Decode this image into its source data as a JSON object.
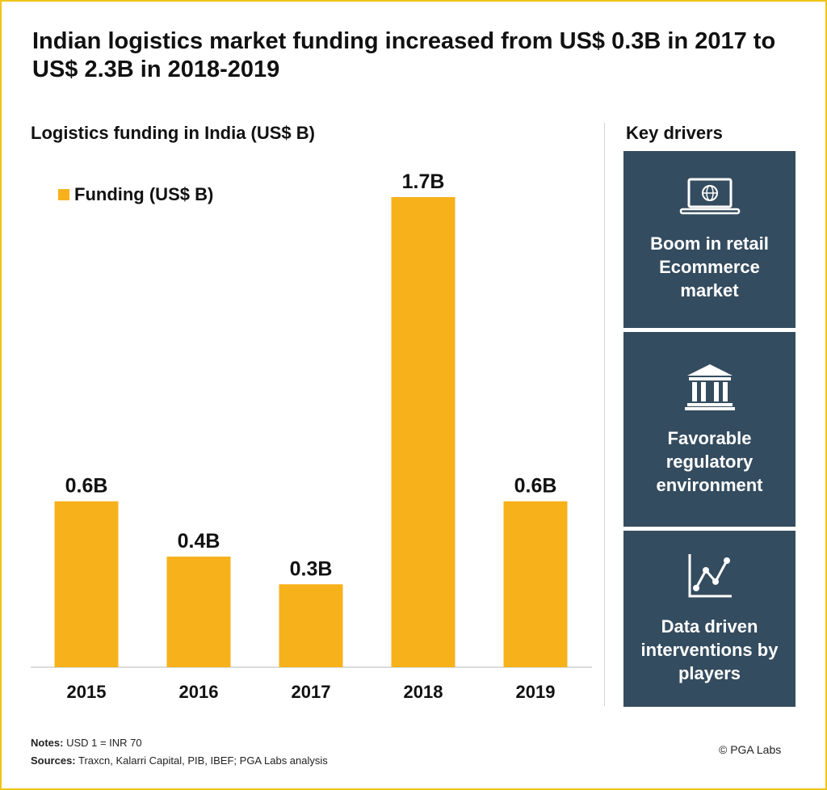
{
  "headline": "Indian logistics market funding increased from US$ 0.3B in 2017 to US$ 2.3B in 2018-2019",
  "chart_data": {
    "type": "bar",
    "title": "Logistics funding in India (US$ B)",
    "categories": [
      "2015",
      "2016",
      "2017",
      "2018",
      "2019"
    ],
    "series": [
      {
        "name": "Funding (US$ B)",
        "values": [
          0.6,
          0.4,
          0.3,
          1.7,
          0.6
        ]
      }
    ],
    "data_labels": [
      "0.6B",
      "0.4B",
      "0.3B",
      "1.7B",
      "0.6B"
    ],
    "ylim": [
      0,
      1.7
    ],
    "grid": false,
    "legend": "top-left",
    "bar_color": "#f7b11b"
  },
  "drivers": {
    "title": "Key drivers",
    "items": [
      {
        "icon": "laptop-globe-icon",
        "text": "Boom in retail Ecommerce market"
      },
      {
        "icon": "government-building-icon",
        "text": "Favorable regulatory environment"
      },
      {
        "icon": "line-chart-icon",
        "text": "Data driven interventions by players"
      }
    ],
    "box_color": "#344c5f"
  },
  "footer": {
    "notes_label": "Notes:",
    "notes_text": " USD 1 = INR 70",
    "sources_label": "Sources:",
    "sources_text": " Traxcn, Kalarri Capital, PIB, IBEF; PGA Labs analysis",
    "copyright": "© PGA Labs"
  },
  "colors": {
    "accent_border": "#f0c419"
  }
}
